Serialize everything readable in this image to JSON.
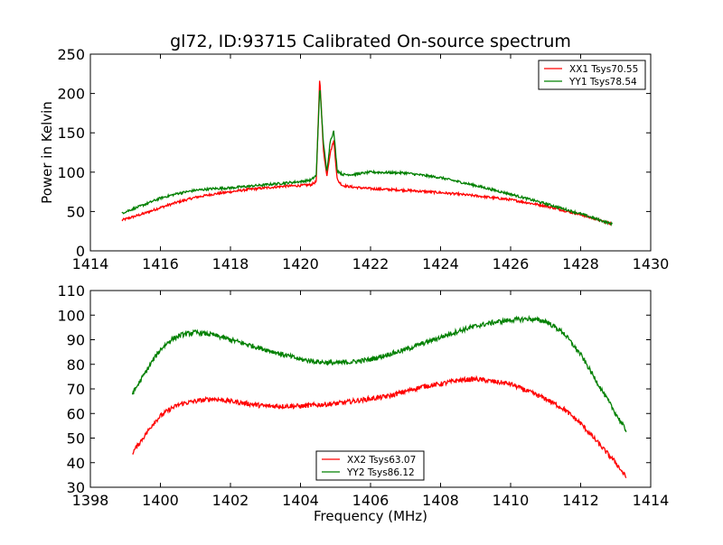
{
  "chart_data": [
    {
      "type": "line",
      "title": "gl72, ID:93715 Calibrated On-source spectrum",
      "xlabel": "",
      "ylabel": "Power in Kelvin",
      "xlim": [
        1414,
        1430
      ],
      "ylim": [
        0,
        250
      ],
      "xticks": [
        1414,
        1416,
        1418,
        1420,
        1422,
        1424,
        1426,
        1428,
        1430
      ],
      "yticks": [
        0,
        50,
        100,
        150,
        200,
        250
      ],
      "grid": false,
      "legend": "top-right",
      "series": [
        {
          "name": "XX1 Tsys70.55",
          "color": "#ff0000",
          "x": [
            1414.9,
            1415.5,
            1416.0,
            1416.5,
            1417.0,
            1417.5,
            1418.0,
            1418.5,
            1419.0,
            1419.5,
            1420.0,
            1420.3,
            1420.45,
            1420.55,
            1420.65,
            1420.75,
            1420.85,
            1420.95,
            1421.05,
            1421.2,
            1421.5,
            1422.0,
            1423.0,
            1424.0,
            1425.0,
            1426.0,
            1427.0,
            1428.0,
            1428.9
          ],
          "y": [
            39,
            47,
            55,
            62,
            68,
            72,
            75,
            78,
            80,
            82,
            83,
            84,
            88,
            222,
            130,
            95,
            125,
            140,
            90,
            83,
            81,
            79,
            77,
            74,
            70,
            65,
            57,
            46,
            34
          ]
        },
        {
          "name": "YY1 Tsys78.54",
          "color": "#008000",
          "x": [
            1414.9,
            1415.5,
            1416.0,
            1416.5,
            1417.0,
            1417.5,
            1418.0,
            1418.5,
            1419.0,
            1419.5,
            1420.0,
            1420.3,
            1420.45,
            1420.55,
            1420.65,
            1420.75,
            1420.85,
            1420.95,
            1421.05,
            1421.2,
            1421.5,
            1422.0,
            1423.0,
            1424.0,
            1425.0,
            1426.0,
            1427.0,
            1428.0,
            1428.9
          ],
          "y": [
            48,
            58,
            67,
            73,
            77,
            79,
            80,
            82,
            84,
            86,
            88,
            90,
            96,
            210,
            140,
            100,
            140,
            152,
            102,
            97,
            97,
            100,
            99,
            93,
            83,
            72,
            60,
            47,
            34
          ]
        }
      ]
    },
    {
      "type": "line",
      "title": "",
      "xlabel": "Frequency (MHz)",
      "ylabel": "",
      "xlim": [
        1398,
        1414
      ],
      "ylim": [
        30,
        110
      ],
      "xticks": [
        1398,
        1400,
        1402,
        1404,
        1406,
        1408,
        1410,
        1412,
        1414
      ],
      "yticks": [
        30,
        40,
        50,
        60,
        70,
        80,
        90,
        100,
        110
      ],
      "grid": false,
      "legend": "bottom-center",
      "series": [
        {
          "name": "XX2 Tsys63.07",
          "color": "#ff0000",
          "x": [
            1399.2,
            1399.5,
            1399.8,
            1400.0,
            1400.3,
            1400.6,
            1401.0,
            1401.5,
            1402.0,
            1402.5,
            1403.0,
            1403.5,
            1404.0,
            1404.5,
            1405.0,
            1405.5,
            1406.0,
            1406.5,
            1407.0,
            1407.5,
            1408.0,
            1408.5,
            1409.0,
            1409.5,
            1410.0,
            1410.5,
            1411.0,
            1411.5,
            1412.0,
            1412.5,
            1413.0,
            1413.3
          ],
          "y": [
            44,
            50,
            56,
            59,
            62,
            64,
            65,
            66,
            65,
            64,
            63,
            63,
            63,
            63.5,
            64,
            65,
            66,
            67,
            69,
            71,
            72,
            73.5,
            74,
            73,
            72,
            69,
            66,
            62,
            56,
            48,
            40,
            34
          ]
        },
        {
          "name": "YY2 Tsys86.12",
          "color": "#008000",
          "x": [
            1399.2,
            1399.5,
            1399.8,
            1400.0,
            1400.3,
            1400.6,
            1401.0,
            1401.5,
            1402.0,
            1402.5,
            1403.0,
            1403.5,
            1404.0,
            1404.5,
            1405.0,
            1405.5,
            1406.0,
            1406.5,
            1407.0,
            1407.5,
            1408.0,
            1408.5,
            1409.0,
            1409.5,
            1410.0,
            1410.5,
            1411.0,
            1411.5,
            1412.0,
            1412.5,
            1413.0,
            1413.3
          ],
          "y": [
            68,
            75,
            82,
            86,
            90,
            92,
            93,
            92,
            90,
            88,
            86,
            84,
            82,
            81,
            80.5,
            81,
            82,
            84,
            86,
            88.5,
            91,
            93.5,
            95.5,
            97,
            98,
            98.5,
            97.5,
            93,
            84,
            72,
            60,
            53
          ]
        }
      ]
    }
  ]
}
